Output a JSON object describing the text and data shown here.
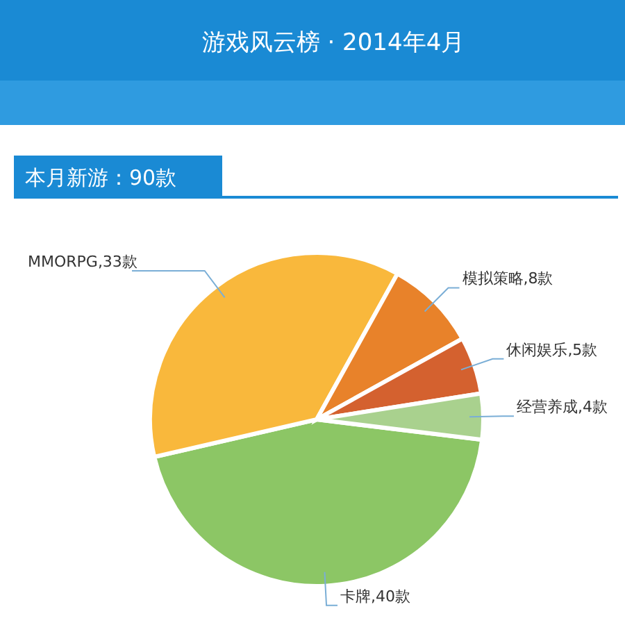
{
  "chart_data": {
    "type": "pie",
    "title": "游戏风云榜 · 2014年4月",
    "annotations": [
      "本月新游：90款"
    ],
    "categories": [
      "卡牌",
      "MMORPG",
      "模拟策略",
      "休闲娱乐",
      "经营养成"
    ],
    "values": [
      40,
      33,
      8,
      5,
      4
    ],
    "value_labels": [
      "40款",
      "33款",
      "8款",
      "5款",
      "4款"
    ],
    "colors": [
      "#8cc665",
      "#f9b83c",
      "#e8822a",
      "#d4612f",
      "#a9d18e"
    ]
  }
}
